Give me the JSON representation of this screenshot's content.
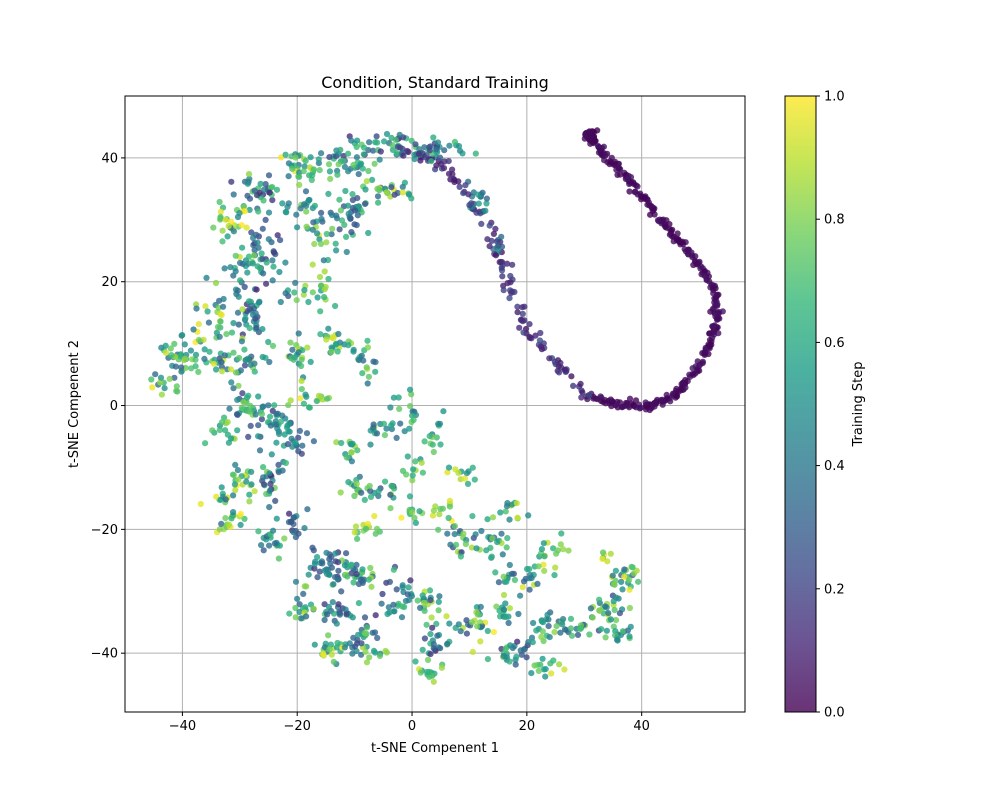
{
  "chart_data": {
    "type": "scatter",
    "title": "Condition, Standard Training",
    "xlabel": "t-SNE Compenent 1",
    "ylabel": "t-SNE Compenent 2",
    "xlim": [
      -50,
      58
    ],
    "ylim": [
      -49.5,
      50
    ],
    "xticks": [
      -40,
      -20,
      0,
      20,
      40
    ],
    "yticks": [
      -40,
      -20,
      0,
      20,
      40
    ],
    "xtick_labels": [
      "−40",
      "−20",
      "0",
      "20",
      "40"
    ],
    "ytick_labels": [
      "−40",
      "−20",
      "0",
      "20",
      "40"
    ],
    "grid": true,
    "colormap": "viridis",
    "point_alpha": 0.8,
    "colorbar": {
      "label": "Training Step",
      "range": [
        0,
        1
      ],
      "ticks": [
        0.0,
        0.2,
        0.4,
        0.6,
        0.8,
        1.0
      ],
      "tick_labels": [
        "0.0",
        "0.2",
        "0.4",
        "0.6",
        "0.8",
        "1.0"
      ]
    },
    "colors": {
      "grid": "#b0b0b0",
      "axes": "#000000"
    },
    "trajectory": [
      [
        30.5,
        44.0,
        0.0
      ],
      [
        31.5,
        43.0,
        0.01
      ],
      [
        33.0,
        41.0,
        0.02
      ],
      [
        35.0,
        39.0,
        0.03
      ],
      [
        37.0,
        37.0,
        0.04
      ],
      [
        39.0,
        35.0,
        0.05
      ],
      [
        41.0,
        33.0,
        0.06
      ],
      [
        43.0,
        30.5,
        0.07
      ],
      [
        45.0,
        28.0,
        0.08
      ],
      [
        47.0,
        26.0,
        0.09
      ],
      [
        49.0,
        24.0,
        0.1
      ],
      [
        51.0,
        21.5,
        0.11
      ],
      [
        52.5,
        19.0,
        0.12
      ],
      [
        53.0,
        16.5,
        0.13
      ],
      [
        53.0,
        14.0,
        0.14
      ],
      [
        52.5,
        11.5,
        0.15
      ],
      [
        51.5,
        9.0,
        0.16
      ],
      [
        50.0,
        6.5,
        0.17
      ],
      [
        48.0,
        4.0,
        0.18
      ],
      [
        46.0,
        2.0,
        0.19
      ],
      [
        44.0,
        0.8,
        0.2
      ],
      [
        42.0,
        0.2,
        0.21
      ],
      [
        40.0,
        0.0,
        0.22
      ],
      [
        37.0,
        0.0,
        0.23
      ],
      [
        34.0,
        0.5,
        0.24
      ],
      [
        31.0,
        1.5,
        0.25
      ],
      [
        28.5,
        3.5,
        0.26
      ],
      [
        26.0,
        6.0,
        0.27
      ],
      [
        23.5,
        8.5,
        0.28
      ],
      [
        21.5,
        11.0,
        0.29
      ],
      [
        19.5,
        13.5,
        0.3
      ],
      [
        18.0,
        16.5,
        0.31
      ],
      [
        17.0,
        19.5,
        0.32
      ],
      [
        16.0,
        22.5,
        0.33
      ],
      [
        14.5,
        25.5,
        0.34
      ],
      [
        13.0,
        29.0,
        0.35
      ],
      [
        11.0,
        32.0,
        0.36
      ],
      [
        9.0,
        35.0,
        0.37
      ],
      [
        6.5,
        37.5,
        0.38
      ],
      [
        4.0,
        39.5,
        0.39
      ],
      [
        1.0,
        41.0,
        0.4
      ],
      [
        -2.0,
        42.0,
        0.41
      ],
      [
        -5.0,
        42.5,
        0.42
      ],
      [
        -8.0,
        42.0,
        0.43
      ],
      [
        -11.0,
        40.5,
        0.44
      ],
      [
        -14.0,
        38.5,
        0.45
      ],
      [
        -17.0,
        36.0,
        0.46
      ],
      [
        -20.0,
        33.0,
        0.47
      ],
      [
        -22.5,
        29.5,
        0.48
      ],
      [
        -24.5,
        26.0,
        0.49
      ],
      [
        -26.5,
        22.0,
        0.5
      ],
      [
        -28.0,
        18.0,
        0.51
      ],
      [
        -29.5,
        14.0,
        0.52
      ],
      [
        -31.0,
        10.0,
        0.53
      ],
      [
        -33.0,
        7.0,
        0.54
      ],
      [
        -36.0,
        5.0,
        0.55
      ],
      [
        -39.5,
        4.0,
        0.56
      ],
      [
        -43.0,
        5.5,
        0.57
      ],
      [
        -44.0,
        9.0,
        0.58
      ],
      [
        -41.0,
        10.5,
        0.59
      ],
      [
        -37.0,
        13.5,
        0.6
      ],
      [
        -35.0,
        17.5,
        0.61
      ],
      [
        -31.0,
        24.0,
        0.62
      ],
      [
        -27.0,
        30.5,
        0.63
      ],
      [
        -24.0,
        36.0,
        0.64
      ],
      [
        -19.0,
        41.0,
        0.65
      ],
      [
        -15.0,
        43.0,
        0.66
      ],
      [
        -12.0,
        32.0,
        0.67
      ],
      [
        -13.0,
        22.0,
        0.68
      ],
      [
        -15.0,
        16.0,
        0.69
      ],
      [
        -18.0,
        11.0,
        0.7
      ],
      [
        -20.0,
        6.0,
        0.71
      ],
      [
        -18.0,
        1.0,
        0.72
      ],
      [
        -21.0,
        -4.0,
        0.73
      ],
      [
        -24.0,
        -8.0,
        0.74
      ],
      [
        -27.0,
        -12.0,
        0.75
      ],
      [
        -30.0,
        -16.0,
        0.76
      ],
      [
        -33.0,
        -20.0,
        0.77
      ],
      [
        -30.0,
        -10.0,
        0.78
      ],
      [
        -28.0,
        -3.0,
        0.79
      ],
      [
        -27.0,
        6.0,
        0.8
      ],
      [
        -22.0,
        -17.0,
        0.81
      ],
      [
        -20.0,
        -25.0,
        0.82
      ],
      [
        -18.0,
        -30.0,
        0.83
      ],
      [
        -16.0,
        -36.0,
        0.84
      ],
      [
        -14.0,
        -41.0,
        0.85
      ],
      [
        -10.0,
        -39.0,
        0.86
      ],
      [
        -6.0,
        -39.0,
        0.87
      ],
      [
        -2.0,
        -39.5,
        0.88
      ],
      [
        2.0,
        -41.0,
        0.89
      ],
      [
        6.0,
        -42.5,
        0.9
      ],
      [
        10.0,
        -41.0,
        0.91
      ],
      [
        14.0,
        -40.0,
        0.92
      ],
      [
        18.0,
        -40.0,
        0.93
      ],
      [
        22.0,
        -39.0,
        0.94
      ],
      [
        26.0,
        -38.0,
        0.95
      ],
      [
        30.0,
        -36.0,
        0.96
      ],
      [
        34.0,
        -33.0,
        0.97
      ],
      [
        37.0,
        -30.0,
        0.98
      ],
      [
        39.0,
        -27.0,
        0.99
      ],
      [
        38.0,
        -31.0,
        1.0
      ]
    ],
    "clusters": [
      {
        "x": 5.0,
        "y": 41.5,
        "rx": 4.0,
        "ry": 2.0,
        "n": 32,
        "cmin": 0.15,
        "cmax": 0.7
      },
      {
        "x": -4.0,
        "y": 42.0,
        "rx": 5.0,
        "ry": 2.0,
        "n": 36,
        "cmin": 0.1,
        "cmax": 0.8
      },
      {
        "x": -12.0,
        "y": 39.5,
        "rx": 5.0,
        "ry": 2.5,
        "n": 38,
        "cmin": 0.1,
        "cmax": 0.8
      },
      {
        "x": -19.0,
        "y": 39.0,
        "rx": 4.0,
        "ry": 3.0,
        "n": 30,
        "cmin": 0.35,
        "cmax": 1.0
      },
      {
        "x": -4.0,
        "y": 35.0,
        "rx": 5.0,
        "ry": 2.0,
        "n": 26,
        "cmin": 0.2,
        "cmax": 0.95
      },
      {
        "x": -11.0,
        "y": 31.5,
        "rx": 3.5,
        "ry": 3.0,
        "n": 36,
        "cmin": 0.2,
        "cmax": 0.7
      },
      {
        "x": -15.0,
        "y": 26.5,
        "rx": 3.0,
        "ry": 2.5,
        "n": 16,
        "cmin": 0.4,
        "cmax": 0.95
      },
      {
        "x": -18.0,
        "y": 32.0,
        "rx": 4.0,
        "ry": 4.0,
        "n": 30,
        "cmin": 0.15,
        "cmax": 0.8
      },
      {
        "x": -25.5,
        "y": 35.0,
        "rx": 3.5,
        "ry": 2.5,
        "n": 34,
        "cmin": 0.1,
        "cmax": 0.9
      },
      {
        "x": -31.5,
        "y": 30.0,
        "rx": 3.0,
        "ry": 3.0,
        "n": 26,
        "cmin": 0.45,
        "cmax": 1.0
      },
      {
        "x": -25.5,
        "y": 24.5,
        "rx": 3.5,
        "ry": 4.5,
        "n": 38,
        "cmin": 0.1,
        "cmax": 0.7
      },
      {
        "x": -30.0,
        "y": 22.0,
        "rx": 3.0,
        "ry": 3.5,
        "n": 26,
        "cmin": 0.3,
        "cmax": 1.0
      },
      {
        "x": -28.5,
        "y": 14.5,
        "rx": 3.0,
        "ry": 4.0,
        "n": 34,
        "cmin": 0.1,
        "cmax": 0.7
      },
      {
        "x": -16.0,
        "y": 19.0,
        "rx": 3.0,
        "ry": 2.5,
        "n": 18,
        "cmin": 0.5,
        "cmax": 0.95
      },
      {
        "x": -21.0,
        "y": 17.5,
        "rx": 2.5,
        "ry": 2.0,
        "n": 8,
        "cmin": 0.2,
        "cmax": 0.8
      },
      {
        "x": -35.0,
        "y": 14.0,
        "rx": 3.5,
        "ry": 4.0,
        "n": 30,
        "cmin": 0.3,
        "cmax": 1.0
      },
      {
        "x": -40.5,
        "y": 8.0,
        "rx": 3.5,
        "ry": 3.0,
        "n": 36,
        "cmin": 0.3,
        "cmax": 1.0
      },
      {
        "x": -43.0,
        "y": 3.5,
        "rx": 2.0,
        "ry": 2.0,
        "n": 14,
        "cmin": 0.3,
        "cmax": 1.0
      },
      {
        "x": -33.0,
        "y": 7.0,
        "rx": 3.0,
        "ry": 2.5,
        "n": 24,
        "cmin": 0.2,
        "cmax": 1.0
      },
      {
        "x": -28.5,
        "y": 7.0,
        "rx": 2.5,
        "ry": 3.0,
        "n": 22,
        "cmin": 0.2,
        "cmax": 0.9
      },
      {
        "x": -20.0,
        "y": 8.5,
        "rx": 2.0,
        "ry": 3.0,
        "n": 22,
        "cmin": 0.3,
        "cmax": 0.95
      },
      {
        "x": -13.5,
        "y": 10.5,
        "rx": 3.0,
        "ry": 2.0,
        "n": 22,
        "cmin": 0.4,
        "cmax": 1.0
      },
      {
        "x": -8.0,
        "y": 7.0,
        "rx": 2.5,
        "ry": 3.0,
        "n": 18,
        "cmin": 0.3,
        "cmax": 0.9
      },
      {
        "x": -17.5,
        "y": 1.0,
        "rx": 3.0,
        "ry": 1.5,
        "n": 16,
        "cmin": 0.5,
        "cmax": 1.0
      },
      {
        "x": -30.0,
        "y": 0.5,
        "rx": 3.0,
        "ry": 2.5,
        "n": 26,
        "cmin": 0.2,
        "cmax": 0.8
      },
      {
        "x": -24.0,
        "y": -3.5,
        "rx": 4.0,
        "ry": 4.0,
        "n": 44,
        "cmin": 0.1,
        "cmax": 0.7
      },
      {
        "x": -19.5,
        "y": -5.5,
        "rx": 2.5,
        "ry": 3.0,
        "n": 16,
        "cmin": 0.2,
        "cmax": 0.6
      },
      {
        "x": -33.0,
        "y": -4.0,
        "rx": 2.5,
        "ry": 3.0,
        "n": 16,
        "cmin": 0.4,
        "cmax": 1.0
      },
      {
        "x": -25.0,
        "y": -12.0,
        "rx": 3.0,
        "ry": 3.5,
        "n": 24,
        "cmin": 0.1,
        "cmax": 0.8
      },
      {
        "x": -30.0,
        "y": -12.0,
        "rx": 3.0,
        "ry": 2.5,
        "n": 20,
        "cmin": 0.4,
        "cmax": 1.0
      },
      {
        "x": -33.0,
        "y": -15.5,
        "rx": 2.5,
        "ry": 2.5,
        "n": 16,
        "cmin": 0.3,
        "cmax": 1.0
      },
      {
        "x": -31.0,
        "y": -19.0,
        "rx": 2.5,
        "ry": 2.0,
        "n": 14,
        "cmin": 0.4,
        "cmax": 1.0
      },
      {
        "x": -20.5,
        "y": -18.5,
        "rx": 2.0,
        "ry": 2.5,
        "n": 16,
        "cmin": 0.1,
        "cmax": 0.6
      },
      {
        "x": -24.5,
        "y": -22.5,
        "rx": 2.5,
        "ry": 2.5,
        "n": 18,
        "cmin": 0.3,
        "cmax": 0.9
      },
      {
        "x": -15.5,
        "y": -25.5,
        "rx": 3.0,
        "ry": 2.5,
        "n": 30,
        "cmin": 0.1,
        "cmax": 0.6
      },
      {
        "x": -11.5,
        "y": -26.5,
        "rx": 2.5,
        "ry": 3.0,
        "n": 22,
        "cmin": 0.1,
        "cmax": 0.8
      },
      {
        "x": -19.0,
        "y": -32.0,
        "rx": 2.5,
        "ry": 3.0,
        "n": 20,
        "cmin": 0.3,
        "cmax": 0.9
      },
      {
        "x": -13.0,
        "y": -33.0,
        "rx": 3.0,
        "ry": 2.0,
        "n": 24,
        "cmin": 0.1,
        "cmax": 0.8
      },
      {
        "x": -13.5,
        "y": -39.5,
        "rx": 3.5,
        "ry": 2.0,
        "n": 26,
        "cmin": 0.4,
        "cmax": 1.0
      },
      {
        "x": -8.0,
        "y": -37.0,
        "rx": 2.5,
        "ry": 3.0,
        "n": 20,
        "cmin": 0.2,
        "cmax": 0.8
      },
      {
        "x": -7.5,
        "y": -20.5,
        "rx": 2.0,
        "ry": 1.5,
        "n": 14,
        "cmin": 0.6,
        "cmax": 1.0
      },
      {
        "x": -8.5,
        "y": -27.0,
        "rx": 2.5,
        "ry": 2.0,
        "n": 18,
        "cmin": 0.2,
        "cmax": 0.9
      },
      {
        "x": -2.5,
        "y": -30.5,
        "rx": 3.0,
        "ry": 3.5,
        "n": 30,
        "cmin": 0.1,
        "cmax": 0.7
      },
      {
        "x": 3.0,
        "y": -31.5,
        "rx": 2.5,
        "ry": 2.0,
        "n": 18,
        "cmin": 0.2,
        "cmax": 0.9
      },
      {
        "x": 4.0,
        "y": -38.5,
        "rx": 2.5,
        "ry": 2.5,
        "n": 22,
        "cmin": 0.1,
        "cmax": 0.7
      },
      {
        "x": 2.5,
        "y": -43.0,
        "rx": 3.0,
        "ry": 1.5,
        "n": 16,
        "cmin": 0.5,
        "cmax": 1.0
      },
      {
        "x": -6.0,
        "y": -40.0,
        "rx": 3.0,
        "ry": 1.0,
        "n": 12,
        "cmin": 0.3,
        "cmax": 0.9
      },
      {
        "x": 10.5,
        "y": -36.0,
        "rx": 3.5,
        "ry": 3.5,
        "n": 28,
        "cmin": 0.2,
        "cmax": 1.0
      },
      {
        "x": 16.5,
        "y": -33.5,
        "rx": 2.5,
        "ry": 2.0,
        "n": 16,
        "cmin": 0.3,
        "cmax": 0.9
      },
      {
        "x": 17.5,
        "y": -40.0,
        "rx": 3.5,
        "ry": 2.0,
        "n": 24,
        "cmin": 0.1,
        "cmax": 0.8
      },
      {
        "x": 23.0,
        "y": -36.0,
        "rx": 2.5,
        "ry": 3.5,
        "n": 24,
        "cmin": 0.2,
        "cmax": 0.9
      },
      {
        "x": 23.5,
        "y": -42.0,
        "rx": 2.5,
        "ry": 1.5,
        "n": 14,
        "cmin": 0.5,
        "cmax": 1.0
      },
      {
        "x": 29.0,
        "y": -36.0,
        "rx": 2.5,
        "ry": 2.5,
        "n": 18,
        "cmin": 0.2,
        "cmax": 0.8
      },
      {
        "x": 34.0,
        "y": -33.0,
        "rx": 3.0,
        "ry": 2.0,
        "n": 26,
        "cmin": 0.2,
        "cmax": 0.9
      },
      {
        "x": 36.0,
        "y": -37.0,
        "rx": 2.5,
        "ry": 1.5,
        "n": 16,
        "cmin": 0.3,
        "cmax": 0.9
      },
      {
        "x": 37.0,
        "y": -28.0,
        "rx": 3.0,
        "ry": 2.0,
        "n": 26,
        "cmin": 0.3,
        "cmax": 1.0
      },
      {
        "x": 33.5,
        "y": -24.0,
        "rx": 1.5,
        "ry": 1.5,
        "n": 6,
        "cmin": 0.7,
        "cmax": 1.0
      },
      {
        "x": 24.0,
        "y": -24.0,
        "rx": 2.5,
        "ry": 2.5,
        "n": 20,
        "cmin": 0.5,
        "cmax": 1.0
      },
      {
        "x": 20.5,
        "y": -28.0,
        "rx": 2.0,
        "ry": 1.5,
        "n": 12,
        "cmin": 0.3,
        "cmax": 1.0
      },
      {
        "x": 16.0,
        "y": -27.5,
        "rx": 2.0,
        "ry": 1.5,
        "n": 12,
        "cmin": 0.2,
        "cmax": 0.8
      },
      {
        "x": 14.0,
        "y": -22.0,
        "rx": 2.5,
        "ry": 3.5,
        "n": 22,
        "cmin": 0.3,
        "cmax": 0.9
      },
      {
        "x": 17.5,
        "y": -17.0,
        "rx": 2.0,
        "ry": 2.0,
        "n": 12,
        "cmin": 0.4,
        "cmax": 1.0
      },
      {
        "x": 8.0,
        "y": -22.0,
        "rx": 2.5,
        "ry": 3.0,
        "n": 20,
        "cmin": 0.2,
        "cmax": 0.9
      },
      {
        "x": 5.0,
        "y": -17.0,
        "rx": 2.0,
        "ry": 2.0,
        "n": 12,
        "cmin": 0.6,
        "cmax": 1.0
      },
      {
        "x": 9.0,
        "y": -11.0,
        "rx": 2.5,
        "ry": 1.5,
        "n": 12,
        "cmin": 0.5,
        "cmax": 1.0
      },
      {
        "x": 0.0,
        "y": -17.5,
        "rx": 2.0,
        "ry": 1.5,
        "n": 10,
        "cmin": 0.5,
        "cmax": 1.0
      },
      {
        "x": -4.0,
        "y": -14.0,
        "rx": 3.0,
        "ry": 2.0,
        "n": 16,
        "cmin": 0.2,
        "cmax": 0.9
      },
      {
        "x": -9.5,
        "y": -13.5,
        "rx": 2.5,
        "ry": 2.0,
        "n": 16,
        "cmin": 0.3,
        "cmax": 0.9
      },
      {
        "x": -11.0,
        "y": -7.0,
        "rx": 2.0,
        "ry": 3.0,
        "n": 14,
        "cmin": 0.3,
        "cmax": 0.9
      },
      {
        "x": -6.0,
        "y": -4.0,
        "rx": 2.5,
        "ry": 2.0,
        "n": 14,
        "cmin": 0.3,
        "cmax": 0.9
      },
      {
        "x": -1.0,
        "y": -1.5,
        "rx": 2.5,
        "ry": 3.0,
        "n": 18,
        "cmin": 0.2,
        "cmax": 0.8
      },
      {
        "x": 3.5,
        "y": -5.5,
        "rx": 2.0,
        "ry": 3.0,
        "n": 14,
        "cmin": 0.4,
        "cmax": 0.9
      },
      {
        "x": 0.5,
        "y": -10.5,
        "rx": 2.0,
        "ry": 1.5,
        "n": 10,
        "cmin": 0.3,
        "cmax": 0.9
      },
      {
        "x": 12.0,
        "y": 33.0,
        "rx": 2.0,
        "ry": 2.0,
        "n": 16,
        "cmin": 0.3,
        "cmax": 0.6
      },
      {
        "x": 15.0,
        "y": 25.0,
        "rx": 1.0,
        "ry": 2.5,
        "n": 8,
        "cmin": 0.2,
        "cmax": 0.5
      }
    ]
  }
}
